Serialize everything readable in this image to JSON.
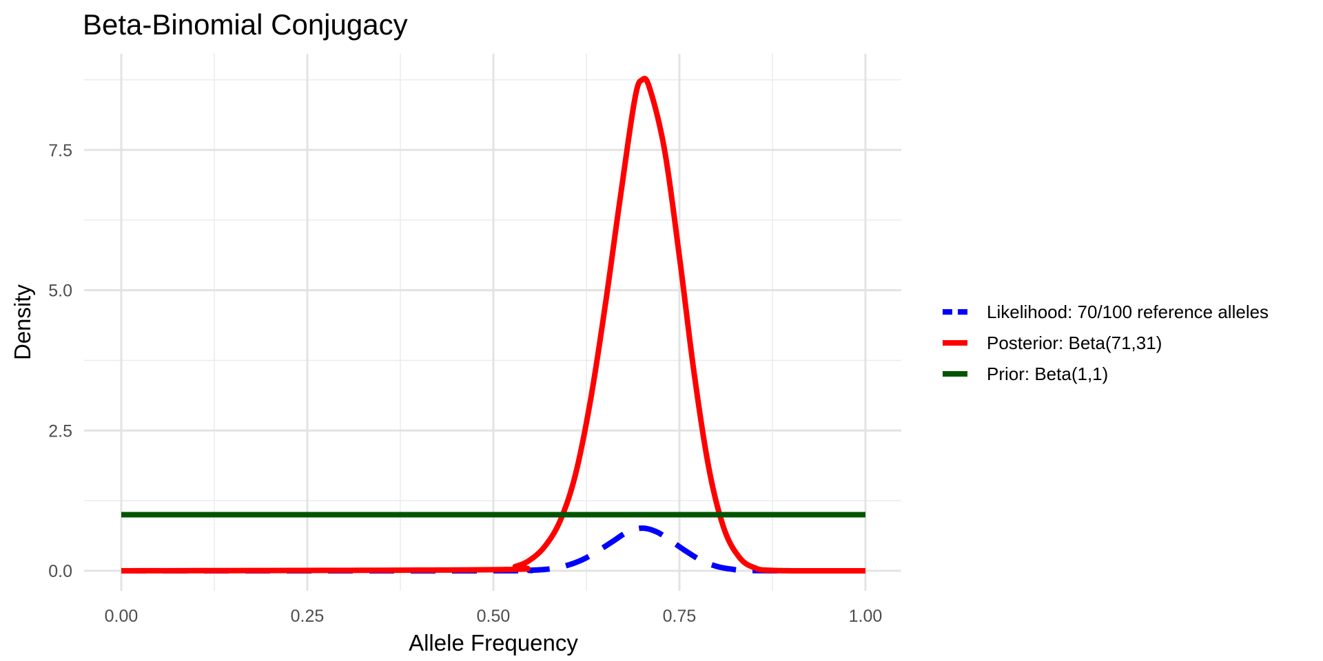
{
  "chart_data": {
    "type": "line",
    "title": "Beta-Binomial Conjugacy",
    "xlabel": "Allele Frequency",
    "ylabel": "Density",
    "xlim": [
      0,
      1
    ],
    "ylim": [
      0,
      8.8
    ],
    "x_ticks": [
      0,
      0.25,
      0.5,
      0.75,
      1
    ],
    "x_tick_labels": [
      "0.00",
      "0.25",
      "0.50",
      "0.75",
      "1.00"
    ],
    "y_ticks": [
      0,
      2.5,
      5,
      7.5
    ],
    "y_tick_labels": [
      "0.0",
      "2.5",
      "5.0",
      "7.5"
    ],
    "grid": true,
    "legend_position": "right",
    "series": [
      {
        "name": "Likelihood: 70/100 reference alleles",
        "color": "#0000ff",
        "dash": "dashed",
        "x": [
          0,
          0.5,
          0.55,
          0.58,
          0.6,
          0.62,
          0.64,
          0.66,
          0.68,
          0.7,
          0.72,
          0.74,
          0.76,
          0.78,
          0.8,
          0.82,
          0.85,
          1
        ],
        "y": [
          0,
          0.001,
          0.01,
          0.04,
          0.1,
          0.2,
          0.35,
          0.52,
          0.69,
          0.76,
          0.69,
          0.52,
          0.34,
          0.18,
          0.08,
          0.03,
          0.004,
          0
        ]
      },
      {
        "name": "Posterior: Beta(71,31)",
        "color": "#ff0000",
        "dash": "solid",
        "x": [
          0,
          0.5,
          0.53,
          0.55,
          0.57,
          0.59,
          0.61,
          0.63,
          0.65,
          0.67,
          0.69,
          0.7,
          0.71,
          0.73,
          0.75,
          0.77,
          0.79,
          0.81,
          0.83,
          0.85,
          0.88,
          1
        ],
        "y": [
          0,
          0.02,
          0.08,
          0.2,
          0.45,
          0.9,
          1.7,
          3.0,
          4.7,
          6.6,
          8.4,
          8.75,
          8.6,
          7.5,
          5.6,
          3.5,
          1.8,
          0.75,
          0.25,
          0.06,
          0.005,
          0
        ]
      },
      {
        "name": "Prior: Beta(1,1)",
        "color": "#005500",
        "dash": "solid",
        "x": [
          0,
          1
        ],
        "y": [
          1,
          1
        ]
      }
    ]
  }
}
